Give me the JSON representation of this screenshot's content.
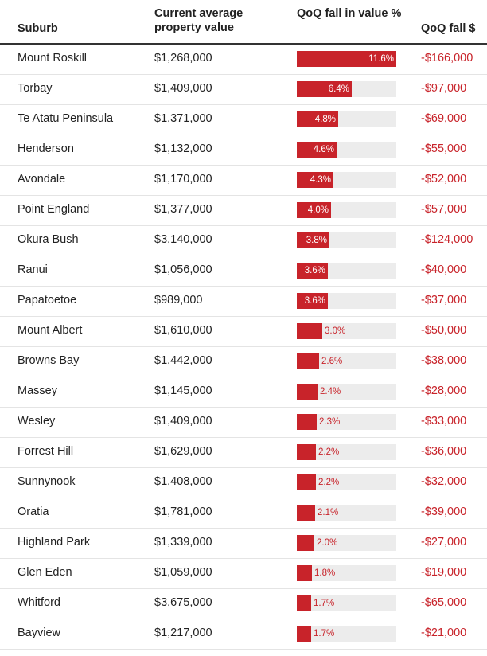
{
  "chart_data": {
    "type": "table",
    "title": "",
    "columns": [
      "Suburb",
      "Current average property value",
      "QoQ fall in value %",
      "QoQ fall $"
    ],
    "bar_max": 11.6,
    "rows": [
      {
        "suburb": "Mount Roskill",
        "value": "$1,268,000",
        "pct": 11.6,
        "pct_label": "11.6%",
        "fall": "-$166,000"
      },
      {
        "suburb": "Torbay",
        "value": "$1,409,000",
        "pct": 6.4,
        "pct_label": "6.4%",
        "fall": "-$97,000"
      },
      {
        "suburb": "Te Atatu Peninsula",
        "value": "$1,371,000",
        "pct": 4.8,
        "pct_label": "4.8%",
        "fall": "-$69,000"
      },
      {
        "suburb": "Henderson",
        "value": "$1,132,000",
        "pct": 4.6,
        "pct_label": "4.6%",
        "fall": "-$55,000"
      },
      {
        "suburb": "Avondale",
        "value": "$1,170,000",
        "pct": 4.3,
        "pct_label": "4.3%",
        "fall": "-$52,000"
      },
      {
        "suburb": "Point England",
        "value": "$1,377,000",
        "pct": 4.0,
        "pct_label": "4.0%",
        "fall": "-$57,000"
      },
      {
        "suburb": "Okura Bush",
        "value": "$3,140,000",
        "pct": 3.8,
        "pct_label": "3.8%",
        "fall": "-$124,000"
      },
      {
        "suburb": "Ranui",
        "value": "$1,056,000",
        "pct": 3.6,
        "pct_label": "3.6%",
        "fall": "-$40,000"
      },
      {
        "suburb": "Papatoetoe",
        "value": "$989,000",
        "pct": 3.6,
        "pct_label": "3.6%",
        "fall": "-$37,000"
      },
      {
        "suburb": "Mount Albert",
        "value": "$1,610,000",
        "pct": 3.0,
        "pct_label": "3.0%",
        "fall": "-$50,000"
      },
      {
        "suburb": "Browns Bay",
        "value": "$1,442,000",
        "pct": 2.6,
        "pct_label": "2.6%",
        "fall": "-$38,000"
      },
      {
        "suburb": "Massey",
        "value": "$1,145,000",
        "pct": 2.4,
        "pct_label": "2.4%",
        "fall": "-$28,000"
      },
      {
        "suburb": "Wesley",
        "value": "$1,409,000",
        "pct": 2.3,
        "pct_label": "2.3%",
        "fall": "-$33,000"
      },
      {
        "suburb": "Forrest Hill",
        "value": "$1,629,000",
        "pct": 2.2,
        "pct_label": "2.2%",
        "fall": "-$36,000"
      },
      {
        "suburb": "Sunnynook",
        "value": "$1,408,000",
        "pct": 2.2,
        "pct_label": "2.2%",
        "fall": "-$32,000"
      },
      {
        "suburb": "Oratia",
        "value": "$1,781,000",
        "pct": 2.1,
        "pct_label": "2.1%",
        "fall": "-$39,000"
      },
      {
        "suburb": "Highland Park",
        "value": "$1,339,000",
        "pct": 2.0,
        "pct_label": "2.0%",
        "fall": "-$27,000"
      },
      {
        "suburb": "Glen Eden",
        "value": "$1,059,000",
        "pct": 1.8,
        "pct_label": "1.8%",
        "fall": "-$19,000"
      },
      {
        "suburb": "Whitford",
        "value": "$3,675,000",
        "pct": 1.7,
        "pct_label": "1.7%",
        "fall": "-$65,000"
      },
      {
        "suburb": "Bayview",
        "value": "$1,217,000",
        "pct": 1.7,
        "pct_label": "1.7%",
        "fall": "-$21,000"
      }
    ]
  },
  "colors": {
    "bar": "#c8232a",
    "track": "#ececec",
    "negative_text": "#c8232a"
  }
}
